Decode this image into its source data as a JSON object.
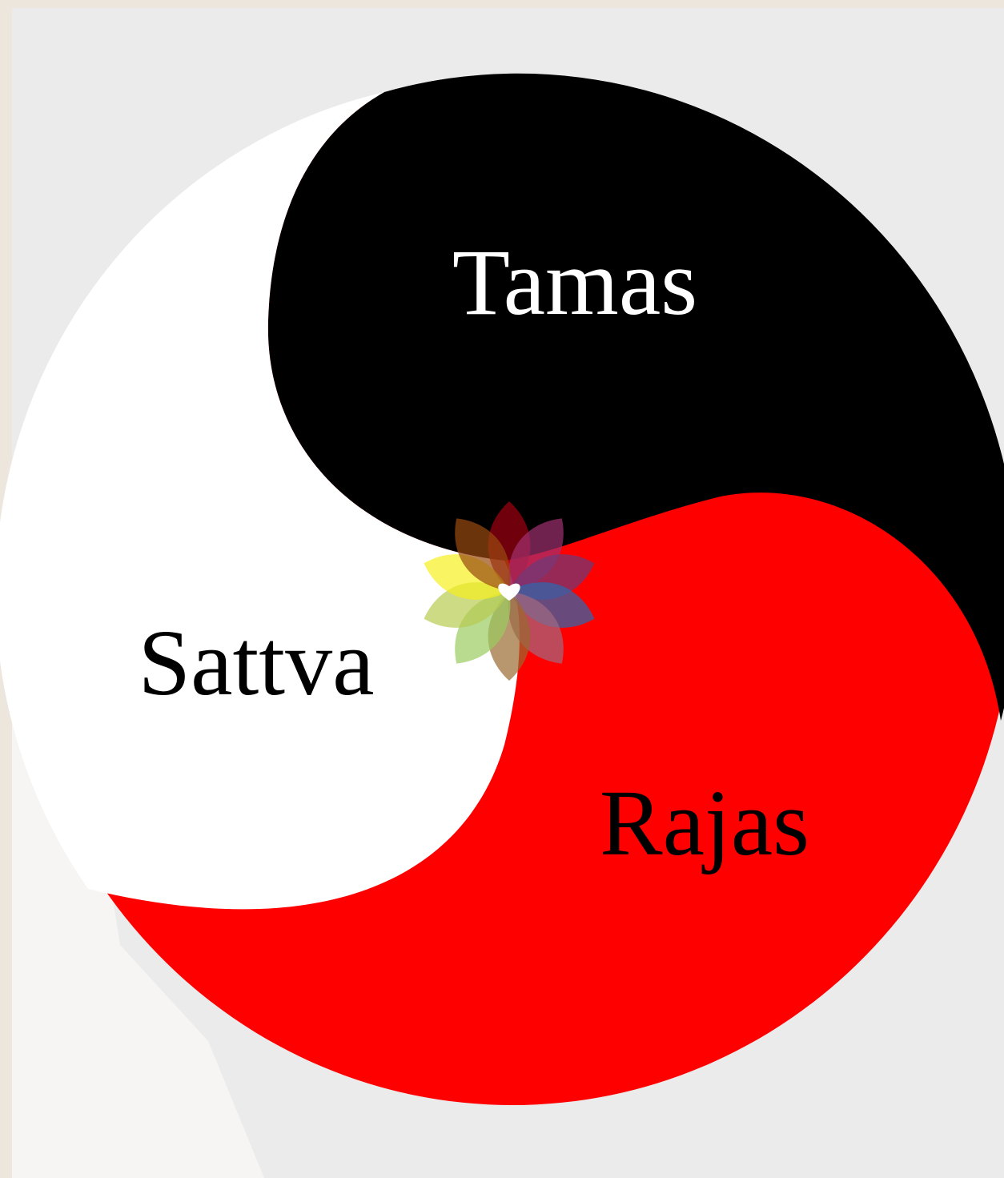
{
  "segments": [
    {
      "label": "Tamas"
    },
    {
      "label": "Sattva"
    },
    {
      "label": "Rajas"
    }
  ]
}
